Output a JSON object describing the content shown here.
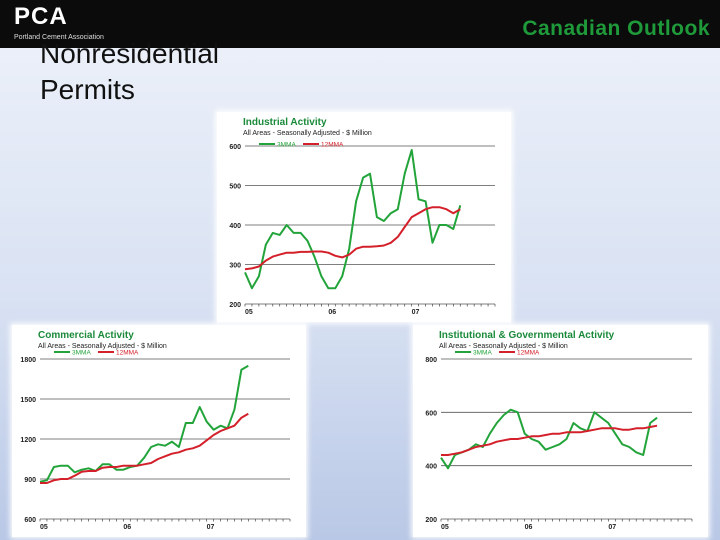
{
  "header": {
    "logo_text": "PCA",
    "logo_subtext": "Portland Cement Association",
    "section_title": "Canadian Outlook"
  },
  "slide": {
    "title_line1": "Nonresidential",
    "title_line2": "Permits"
  },
  "colors": {
    "green_series": "#22a43a",
    "red_series": "#d4202a",
    "title_text": "#1a8a3a",
    "header_bg": "#0b0b0b"
  },
  "chart_data": [
    {
      "type": "line",
      "title": "Industrial Activity",
      "subtitle": "All Areas - Seasonally Adjusted - $ Million",
      "xlabel": "",
      "ylabel": "",
      "ylim": [
        200,
        600
      ],
      "yticks": [
        200,
        300,
        400,
        500,
        600
      ],
      "xticks": [
        "05",
        "06",
        "07"
      ],
      "xlim": [
        0,
        36
      ],
      "xtick_positions": [
        0,
        12,
        24
      ],
      "grid": true,
      "legend_position": "top-left",
      "series": [
        {
          "name": "3MMA",
          "color": "#22a43a",
          "x": [
            0,
            1,
            2,
            3,
            4,
            5,
            6,
            7,
            8,
            9,
            10,
            11,
            12,
            13,
            14,
            15,
            16,
            17,
            18,
            19,
            20,
            21,
            22,
            23,
            24,
            25,
            26,
            27,
            28,
            29,
            30,
            31
          ],
          "values": [
            280,
            240,
            270,
            350,
            380,
            375,
            400,
            380,
            380,
            360,
            320,
            270,
            240,
            240,
            270,
            340,
            460,
            520,
            530,
            420,
            410,
            430,
            440,
            530,
            590,
            465,
            460,
            355,
            400,
            400,
            390,
            450
          ]
        },
        {
          "name": "12MMA",
          "color": "#d4202a",
          "x": [
            0,
            1,
            2,
            3,
            4,
            5,
            6,
            7,
            8,
            9,
            10,
            11,
            12,
            13,
            14,
            15,
            16,
            17,
            18,
            19,
            20,
            21,
            22,
            23,
            24,
            25,
            26,
            27,
            28,
            29,
            30,
            31
          ],
          "values": [
            288,
            290,
            295,
            310,
            320,
            325,
            330,
            330,
            332,
            332,
            333,
            333,
            330,
            322,
            318,
            325,
            340,
            345,
            345,
            346,
            348,
            355,
            370,
            395,
            420,
            430,
            440,
            445,
            445,
            440,
            430,
            440
          ]
        }
      ]
    },
    {
      "type": "line",
      "title": "Commercial Activity",
      "subtitle": "All Areas - Seasonally Adjusted - $ Million",
      "xlabel": "",
      "ylabel": "",
      "ylim": [
        600,
        1800
      ],
      "yticks": [
        600,
        900,
        1200,
        1500,
        1800
      ],
      "xticks": [
        "05",
        "06",
        "07"
      ],
      "xlim": [
        0,
        36
      ],
      "xtick_positions": [
        0,
        12,
        24
      ],
      "grid": true,
      "legend_position": "top-left",
      "series": [
        {
          "name": "3MMA",
          "color": "#22a43a",
          "x": [
            0,
            1,
            2,
            3,
            4,
            5,
            6,
            7,
            8,
            9,
            10,
            11,
            12,
            13,
            14,
            15,
            16,
            17,
            18,
            19,
            20,
            21,
            22,
            23,
            24,
            25,
            26,
            27,
            28,
            29,
            30
          ],
          "values": [
            880,
            890,
            990,
            1000,
            1000,
            950,
            970,
            980,
            960,
            1010,
            1010,
            970,
            970,
            990,
            1000,
            1060,
            1140,
            1160,
            1150,
            1180,
            1140,
            1320,
            1320,
            1440,
            1330,
            1270,
            1300,
            1280,
            1420,
            1720,
            1750
          ]
        },
        {
          "name": "12MMA",
          "color": "#d4202a",
          "x": [
            0,
            1,
            2,
            3,
            4,
            5,
            6,
            7,
            8,
            9,
            10,
            11,
            12,
            13,
            14,
            15,
            16,
            17,
            18,
            19,
            20,
            21,
            22,
            23,
            24,
            25,
            26,
            27,
            28,
            29,
            30
          ],
          "values": [
            870,
            870,
            890,
            900,
            900,
            925,
            955,
            960,
            960,
            985,
            990,
            990,
            1000,
            1000,
            1000,
            1010,
            1020,
            1050,
            1070,
            1090,
            1100,
            1120,
            1130,
            1150,
            1190,
            1230,
            1260,
            1280,
            1300,
            1360,
            1390
          ]
        }
      ]
    },
    {
      "type": "line",
      "title": "Institutional & Governmental Activity",
      "subtitle": "All Areas - Seasonally Adjusted - $ Million",
      "xlabel": "",
      "ylabel": "",
      "ylim": [
        200,
        800
      ],
      "yticks": [
        200,
        400,
        600,
        800
      ],
      "xticks": [
        "05",
        "06",
        "07"
      ],
      "xlim": [
        0,
        36
      ],
      "xtick_positions": [
        0,
        12,
        24
      ],
      "grid": true,
      "legend_position": "top-left",
      "series": [
        {
          "name": "3MMA",
          "color": "#22a43a",
          "x": [
            0,
            1,
            2,
            3,
            4,
            5,
            6,
            7,
            8,
            9,
            10,
            11,
            12,
            13,
            14,
            15,
            16,
            17,
            18,
            19,
            20,
            21,
            22,
            23,
            24,
            25,
            26,
            27,
            28,
            29,
            30,
            31
          ],
          "values": [
            430,
            390,
            440,
            450,
            460,
            480,
            470,
            520,
            560,
            590,
            610,
            600,
            520,
            500,
            490,
            460,
            470,
            480,
            500,
            560,
            540,
            530,
            600,
            580,
            560,
            520,
            480,
            470,
            450,
            440,
            560,
            580
          ]
        },
        {
          "name": "12MMA",
          "color": "#d4202a",
          "x": [
            0,
            1,
            2,
            3,
            4,
            5,
            6,
            7,
            8,
            9,
            10,
            11,
            12,
            13,
            14,
            15,
            16,
            17,
            18,
            19,
            20,
            21,
            22,
            23,
            24,
            25,
            26,
            27,
            28,
            29,
            30,
            31
          ],
          "values": [
            440,
            440,
            445,
            450,
            460,
            470,
            475,
            480,
            490,
            495,
            500,
            500,
            505,
            510,
            510,
            515,
            520,
            520,
            525,
            525,
            525,
            530,
            535,
            540,
            540,
            540,
            535,
            535,
            540,
            540,
            545,
            550
          ]
        }
      ]
    }
  ]
}
